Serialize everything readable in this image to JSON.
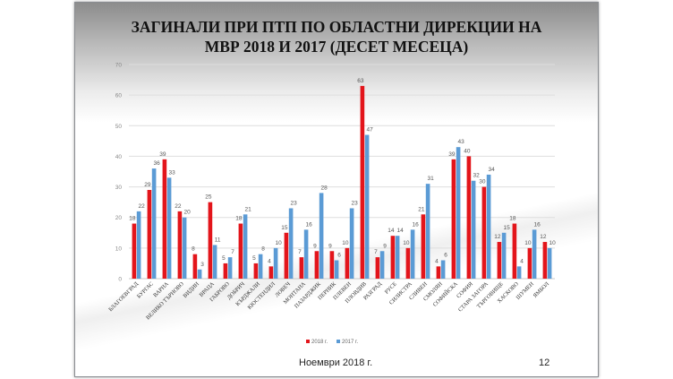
{
  "title_line1": "ЗАГИНАЛИ ПРИ ПТП ПО ОБЛАСТНИ ДИРЕКЦИИ НА",
  "title_line2": "МВР 2018 И 2017 (ДЕСЕТ МЕСЕЦА)",
  "footer": {
    "date": "Ноември 2018 г.",
    "page": "12"
  },
  "chart_data": {
    "type": "bar",
    "title": "ЗАГИНАЛИ ПРИ ПТП ПО ОБЛАСТНИ ДИРЕКЦИИ НА МВР 2018 И 2017 (ДЕСЕТ МЕСЕЦА)",
    "categories": [
      "БЛАГОЕВГРАД",
      "БУРГАС",
      "ВАРНА",
      "ВЕЛИКО ТЪРНОВО",
      "ВИДИН",
      "ВРАЦА",
      "ГАБРОВО",
      "ДОБРИЧ",
      "КЪРДЖАЛИ",
      "КЮСТЕНДИЛ",
      "ЛОВЕЧ",
      "МОНТАНА",
      "ПАЗАРДЖИК",
      "ПЕРНИК",
      "ПЛЕВЕН",
      "ПЛОВДИВ",
      "РАЗГРАД",
      "РУСЕ",
      "СИЛИСТРА",
      "СЛИВЕН",
      "СМОЛЯН",
      "СОФИЙСКА",
      "СОФИЯ",
      "СТАРА ЗАГОРА",
      "ТЪРГОВИЩЕ",
      "ХАСКОВО",
      "ШУМЕН",
      "ЯМБОЛ"
    ],
    "series": [
      {
        "name": "2018 г.",
        "color": "#e3151b",
        "values": [
          18,
          29,
          39,
          22,
          8,
          25,
          5,
          18,
          5,
          4,
          15,
          7,
          9,
          9,
          10,
          63,
          7,
          14,
          10,
          21,
          4,
          39,
          40,
          30,
          12,
          18,
          10,
          12
        ]
      },
      {
        "name": "2017 г.",
        "color": "#5b9bd5",
        "values": [
          22,
          36,
          33,
          20,
          3,
          11,
          7,
          21,
          8,
          10,
          23,
          16,
          28,
          6,
          23,
          47,
          9,
          14,
          16,
          31,
          6,
          43,
          32,
          34,
          15,
          4,
          16,
          10
        ]
      }
    ],
    "ylim": [
      0,
      70
    ],
    "yticks": [
      "0",
      "10",
      "20",
      "30",
      "40",
      "50",
      "60",
      "70"
    ],
    "grid": true,
    "legend": "bottom"
  }
}
